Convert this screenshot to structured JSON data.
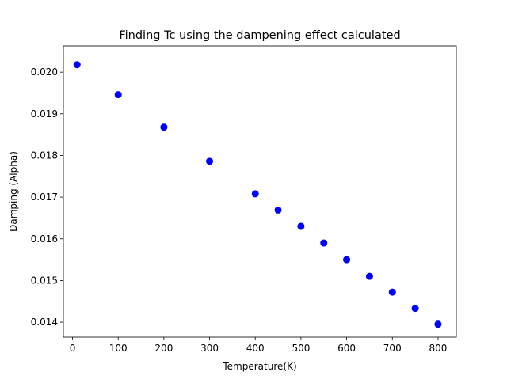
{
  "chart_data": {
    "type": "scatter",
    "title": "Finding Tc using the dampening effect calculated",
    "xlabel": "Temperature(K)",
    "ylabel": "Damping (Alpha)",
    "xlim": [
      -20,
      840
    ],
    "ylim": [
      0.01364,
      0.02063
    ],
    "x_ticks": [
      0,
      100,
      200,
      300,
      400,
      500,
      600,
      700,
      800
    ],
    "y_ticks": [
      0.014,
      0.015,
      0.016,
      0.017,
      0.018,
      0.019,
      0.02
    ],
    "x_tick_labels": [
      "0",
      "100",
      "200",
      "300",
      "400",
      "500",
      "600",
      "700",
      "800"
    ],
    "y_tick_labels": [
      "0.014",
      "0.015",
      "0.016",
      "0.017",
      "0.018",
      "0.019",
      "0.020"
    ],
    "grid": false,
    "series": [
      {
        "color": "#0000ff",
        "marker": "circle",
        "x": [
          10,
          100,
          200,
          300,
          400,
          450,
          500,
          550,
          600,
          650,
          700,
          750,
          800
        ],
        "y": [
          0.02018,
          0.01946,
          0.01868,
          0.01786,
          0.01708,
          0.01669,
          0.0163,
          0.0159,
          0.0155,
          0.0151,
          0.01472,
          0.01433,
          0.01395
        ]
      }
    ]
  }
}
